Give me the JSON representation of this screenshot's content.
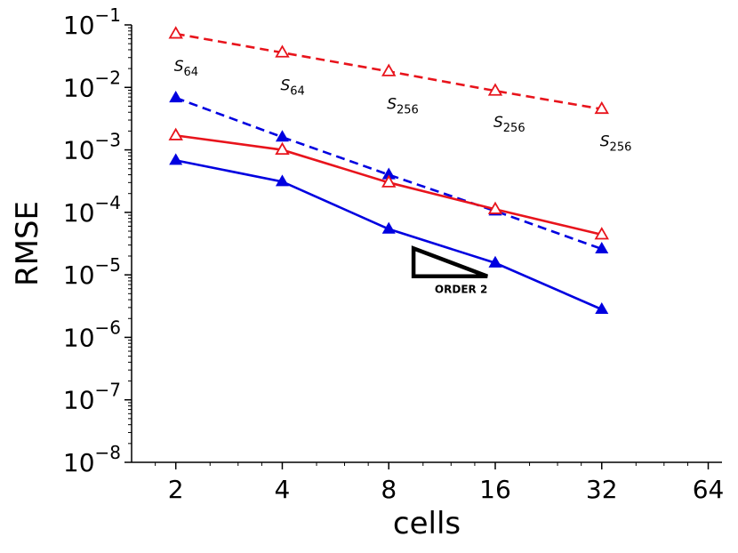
{
  "chart_data": {
    "type": "line",
    "title": "",
    "xlabel": "cells",
    "ylabel": "RMSE",
    "xscale": "log2",
    "yscale": "log10",
    "xlim": [
      1.5,
      70
    ],
    "ylim": [
      1e-08,
      0.1
    ],
    "xticks": [
      2,
      4,
      8,
      16,
      32,
      64
    ],
    "xtick_labels": [
      "2",
      "4",
      "8",
      "16",
      "32",
      "64"
    ],
    "yticks": [
      {
        "value": 0.1,
        "base": "10",
        "exp": "−1"
      },
      {
        "value": 0.01,
        "base": "10",
        "exp": "−2"
      },
      {
        "value": 0.001,
        "base": "10",
        "exp": "−3"
      },
      {
        "value": 0.0001,
        "base": "10",
        "exp": "−4"
      },
      {
        "value": 1e-05,
        "base": "10",
        "exp": "−5"
      },
      {
        "value": 1e-06,
        "base": "10",
        "exp": "−6"
      },
      {
        "value": 1e-07,
        "base": "10",
        "exp": "−7"
      },
      {
        "value": 1e-08,
        "base": "10",
        "exp": "−8"
      }
    ],
    "x": [
      2,
      4,
      8,
      16,
      32
    ],
    "series": [
      {
        "name": "red-dashed",
        "color": "#e8141c",
        "dash": true,
        "marker": "open-triangle",
        "values": [
          0.072,
          0.036,
          0.018,
          0.0088,
          0.0045
        ]
      },
      {
        "name": "blue-dashed",
        "color": "#0000e0",
        "dash": true,
        "marker": "filled-triangle",
        "values": [
          0.0068,
          0.0016,
          0.0004,
          0.000105,
          2.6e-05
        ]
      },
      {
        "name": "red-solid",
        "color": "#e8141c",
        "dash": false,
        "marker": "open-triangle",
        "values": [
          0.0017,
          0.001,
          0.0003,
          0.000112,
          4.4e-05
        ]
      },
      {
        "name": "blue-solid",
        "color": "#0000e0",
        "dash": false,
        "marker": "filled-triangle",
        "values": [
          0.00068,
          0.00031,
          5.4e-05,
          1.55e-05,
          2.8e-06
        ]
      }
    ],
    "annotations": [
      {
        "x": 2,
        "y": 0.022,
        "base": "S",
        "sub": "64"
      },
      {
        "x": 4,
        "y": 0.011,
        "base": "S",
        "sub": "64"
      },
      {
        "x": 8,
        "y": 0.0055,
        "base": "S",
        "sub": "256"
      },
      {
        "x": 16,
        "y": 0.0028,
        "base": "S",
        "sub": "256"
      },
      {
        "x": 32,
        "y": 0.0014,
        "base": "S",
        "sub": "256"
      }
    ],
    "order_triangle": {
      "label": "ORDER 2",
      "x_start": 9.4,
      "x_end": 15.2,
      "y_top": 2.65e-05,
      "y_bottom": 9.5e-06
    }
  }
}
